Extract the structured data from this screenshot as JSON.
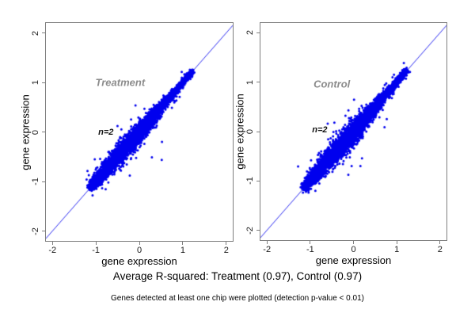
{
  "figure": {
    "background": "#ffffff",
    "axis_color": "#7f7f7f",
    "text_color": "#000000"
  },
  "captions": {
    "summary": "Average R-squared: Treatment (0.97), Control (0.97)",
    "footnote": "Genes detected at least one chip were plotted (detection p-value < 0.01)"
  },
  "chart_data": [
    {
      "type": "scatter",
      "title": "Treatment",
      "title_color": "#8c8c8c",
      "title_pos": [
        -0.44,
        1.0
      ],
      "annotation": "n=2",
      "annotation_pos": [
        -0.77,
        0.0
      ],
      "xlabel": "gene expression",
      "ylabel": "gene expression",
      "xticks": [
        -2,
        -1,
        0,
        1,
        2
      ],
      "yticks": [
        -2,
        -1,
        0,
        1,
        2
      ],
      "xlim": [
        -2.15,
        2.15
      ],
      "ylim": [
        -2.2,
        2.2
      ],
      "grid": false,
      "legend": false,
      "identity_line": true,
      "point_color": "#0000ee",
      "line_color": "#2a2af0",
      "r_squared": 0.97,
      "cloud": {
        "seed": 42,
        "n": 5200,
        "min": -1.1,
        "max": 1.22,
        "skew": 1.35,
        "sd_base": 0.022,
        "sd_amp": 0.065,
        "sd_center": -0.25,
        "sd_width": 0.55,
        "outlier_prob": 0.012,
        "outlier_mult": 3.2
      }
    },
    {
      "type": "scatter",
      "title": "Control",
      "title_color": "#8c8c8c",
      "title_pos": [
        -0.5,
        0.97
      ],
      "annotation": "n=2",
      "annotation_pos": [
        -0.78,
        0.03
      ],
      "xlabel": "gene expression",
      "ylabel": "gene expression",
      "xticks": [
        -2,
        -1,
        0,
        1,
        2
      ],
      "yticks": [
        -2,
        -1,
        0,
        1,
        2
      ],
      "xlim": [
        -2.15,
        2.15
      ],
      "ylim": [
        -2.2,
        2.2
      ],
      "grid": false,
      "legend": false,
      "identity_line": true,
      "point_color": "#0000ee",
      "line_color": "#2a2af0",
      "r_squared": 0.97,
      "cloud": {
        "seed": 7,
        "n": 5200,
        "min": -1.12,
        "max": 1.24,
        "skew": 1.35,
        "sd_base": 0.024,
        "sd_amp": 0.07,
        "sd_center": -0.2,
        "sd_width": 0.55,
        "outlier_prob": 0.014,
        "outlier_mult": 3.2
      }
    }
  ]
}
